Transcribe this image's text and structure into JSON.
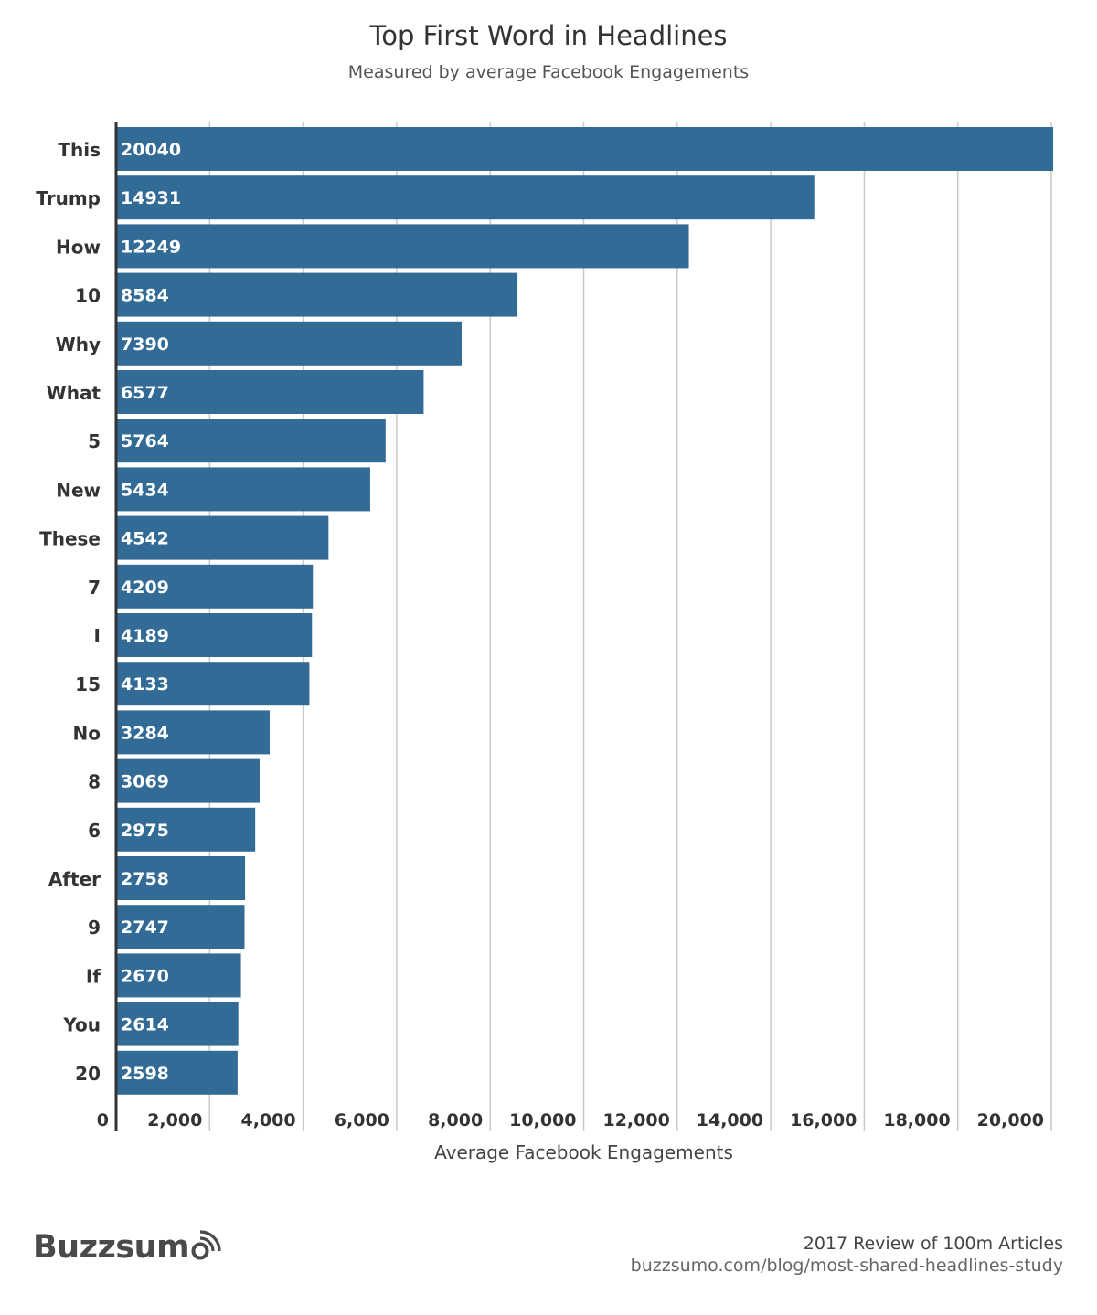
{
  "chart_data": {
    "type": "bar",
    "orientation": "horizontal",
    "title": "Top First Word in Headlines",
    "subtitle": "Measured by average Facebook Engagements",
    "xlabel": "Average Facebook Engagements",
    "ylabel": "",
    "xlim": [
      0,
      20000
    ],
    "xticks": [
      0,
      2000,
      4000,
      6000,
      8000,
      10000,
      12000,
      14000,
      16000,
      18000,
      20000
    ],
    "xtick_labels": [
      "0",
      "2,000",
      "4,000",
      "6,000",
      "8,000",
      "10,000",
      "12,000",
      "14,000",
      "16,000",
      "18,000",
      "20,000"
    ],
    "grid": "vertical",
    "bar_color": "#336b97",
    "categories": [
      "This",
      "Trump",
      "How",
      "10",
      "Why",
      "What",
      "5",
      "New",
      "These",
      "7",
      "I",
      "15",
      "No",
      "8",
      "6",
      "After",
      "9",
      "If",
      "You",
      "20"
    ],
    "values": [
      20040,
      14931,
      12249,
      8584,
      7390,
      6577,
      5764,
      5434,
      4542,
      4209,
      4189,
      4133,
      3284,
      3069,
      2975,
      2758,
      2747,
      2670,
      2614,
      2598
    ],
    "data_labels": [
      "20040",
      "14931",
      "12249",
      "8584",
      "7390",
      "6577",
      "5764",
      "5434",
      "4542",
      "4209",
      "4189",
      "4133",
      "3284",
      "3069",
      "2975",
      "2758",
      "2747",
      "2670",
      "2614",
      "2598"
    ]
  },
  "footer": {
    "brand": "Buzzsum",
    "brand_icon": "buzzsumo-signal-icon",
    "study_title": "2017 Review of 100m Articles",
    "study_url": "buzzsumo.com/blog/most-shared-headlines-study"
  }
}
